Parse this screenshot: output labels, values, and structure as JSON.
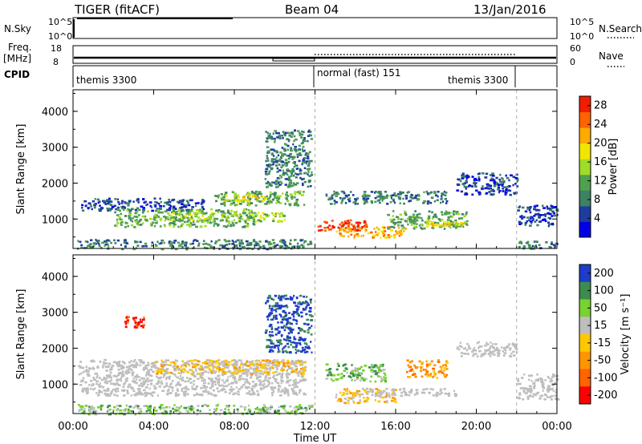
{
  "header": {
    "title": "TIGER (fitACF)",
    "beam": "Beam 04",
    "date": "13/Jan/2016"
  },
  "summary": {
    "nsky_label": "N.Sky",
    "nsky_ticks": [
      "10^5",
      "10^0"
    ],
    "nsearch_label": "N.Search",
    "freq_label": "Freq.",
    "freq_unit": "[MHz]",
    "freq_ticks": [
      "18",
      "8"
    ],
    "nave_label": "Nave",
    "nave_ticks": [
      "60",
      "0"
    ],
    "cpid_label": "CPID",
    "cpid_segments": [
      {
        "name": "themis 3300",
        "start_h": 0,
        "end_h": 12
      },
      {
        "name": "normal (fast) 151",
        "start_h": 12,
        "end_h": 22
      },
      {
        "name": "themis 3300",
        "start_h": 22,
        "end_h": 24
      }
    ],
    "cpid_labels": [
      "themis 3300",
      "normal (fast) 151",
      "themis 3300"
    ]
  },
  "colors": {
    "power_scale": [
      "#0000e6",
      "#1e3ca0",
      "#3c8264",
      "#50a050",
      "#a0dc28",
      "#f0e600",
      "#ffaa00",
      "#ff6400",
      "#f01e00"
    ],
    "velocity_scale": [
      "#1e3cc8",
      "#3c8c50",
      "#78d232",
      "#bebebe",
      "#ffc800",
      "#ff9600",
      "#ff6400",
      "#ff0000"
    ],
    "ground_scatter": "#bebebe"
  },
  "chart_data": [
    {
      "type": "heatmap",
      "name": "power",
      "xlabel": "Time UT",
      "ylabel": "Slant Range [km]",
      "xlim": [
        0,
        24
      ],
      "ylim": [
        180,
        4600
      ],
      "xticks": [
        0,
        4,
        8,
        12,
        16,
        20,
        24
      ],
      "yticks": [
        1000,
        2000,
        3000,
        4000
      ],
      "ytick_labels": [
        "1000",
        "2000",
        "3000",
        "4000"
      ],
      "colorbar": {
        "label": "Power [dB]",
        "range": [
          0,
          30
        ],
        "tick_values": [
          4,
          8,
          12,
          16,
          20,
          24,
          28
        ],
        "tick_labels": [
          "4",
          "8",
          "12",
          "16",
          "20",
          "24",
          "28"
        ]
      },
      "blobs": [
        {
          "t0": 0.2,
          "t1": 11.8,
          "r0": 180,
          "r1": 450,
          "level": 2
        },
        {
          "t0": 0.4,
          "t1": 6.5,
          "r0": 1250,
          "r1": 1600,
          "level": 1
        },
        {
          "t0": 2.0,
          "t1": 9.0,
          "r0": 800,
          "r1": 1300,
          "level": 3
        },
        {
          "t0": 4.5,
          "t1": 10.5,
          "r0": 950,
          "r1": 1200,
          "level": 4
        },
        {
          "t0": 7.0,
          "t1": 11.5,
          "r0": 1400,
          "r1": 1800,
          "level": 3
        },
        {
          "t0": 7.5,
          "t1": 9.5,
          "r0": 1500,
          "r1": 1700,
          "level": 5
        },
        {
          "t0": 9.5,
          "t1": 11.8,
          "r0": 1900,
          "r1": 3500,
          "level": 2
        },
        {
          "t0": 12.0,
          "t1": 14.5,
          "r0": 700,
          "r1": 1000,
          "level": 8
        },
        {
          "t0": 13.0,
          "t1": 16.5,
          "r0": 500,
          "r1": 800,
          "level": 6
        },
        {
          "t0": 15.5,
          "t1": 19.5,
          "r0": 750,
          "r1": 1250,
          "level": 3
        },
        {
          "t0": 17.5,
          "t1": 19.5,
          "r0": 800,
          "r1": 1000,
          "level": 5
        },
        {
          "t0": 12.5,
          "t1": 18.5,
          "r0": 1450,
          "r1": 1800,
          "level": 2
        },
        {
          "t0": 19.0,
          "t1": 22.0,
          "r0": 1700,
          "r1": 2300,
          "level": 1
        },
        {
          "t0": 22.0,
          "t1": 24.0,
          "r0": 800,
          "r1": 1400,
          "level": 1
        },
        {
          "t0": 22.0,
          "t1": 24.0,
          "r0": 180,
          "r1": 400,
          "level": 2
        }
      ]
    },
    {
      "type": "heatmap",
      "name": "velocity",
      "xlabel": "Time UT",
      "ylabel": "Slant Range [km]",
      "xlim": [
        0,
        24
      ],
      "ylim": [
        180,
        4600
      ],
      "xticks": [
        0,
        4,
        8,
        12,
        16,
        20,
        24
      ],
      "xtick_labels": [
        "00:00",
        "04:00",
        "08:00",
        "12:00",
        "16:00",
        "20:00",
        "00:00"
      ],
      "yticks": [
        1000,
        2000,
        3000,
        4000
      ],
      "ytick_labels": [
        "1000",
        "2000",
        "3000",
        "4000"
      ],
      "colorbar": {
        "label": "Velocity [m s⁻¹]",
        "range": [
          -250,
          250
        ],
        "tick_labels": [
          "200",
          "100",
          "50",
          "15",
          "-15",
          "-50",
          "-100",
          "-200"
        ]
      },
      "blobs": [
        {
          "t0": 0.2,
          "t1": 11.5,
          "r0": 700,
          "r1": 1700,
          "cat": "ground"
        },
        {
          "t0": 0.2,
          "t1": 11.8,
          "r0": 180,
          "r1": 450,
          "cat": 2
        },
        {
          "t0": 4.0,
          "t1": 11.5,
          "r0": 1300,
          "r1": 1700,
          "cat": 4
        },
        {
          "t0": 9.5,
          "t1": 11.8,
          "r0": 1900,
          "r1": 3500,
          "cat": 0
        },
        {
          "t0": 2.5,
          "t1": 3.5,
          "r0": 2600,
          "r1": 2900,
          "cat": 7
        },
        {
          "t0": 12.5,
          "t1": 15.5,
          "r0": 1100,
          "r1": 1600,
          "cat": 2
        },
        {
          "t0": 13.0,
          "t1": 16.0,
          "r0": 500,
          "r1": 900,
          "cat": 4
        },
        {
          "t0": 14.5,
          "t1": 19.0,
          "r0": 700,
          "r1": 900,
          "cat": "ground"
        },
        {
          "t0": 16.5,
          "t1": 18.5,
          "r0": 1200,
          "r1": 1700,
          "cat": 5
        },
        {
          "t0": 19.0,
          "t1": 22.0,
          "r0": 1800,
          "r1": 2200,
          "cat": "ground"
        },
        {
          "t0": 22.0,
          "t1": 24.0,
          "r0": 600,
          "r1": 1300,
          "cat": "ground"
        }
      ]
    }
  ]
}
